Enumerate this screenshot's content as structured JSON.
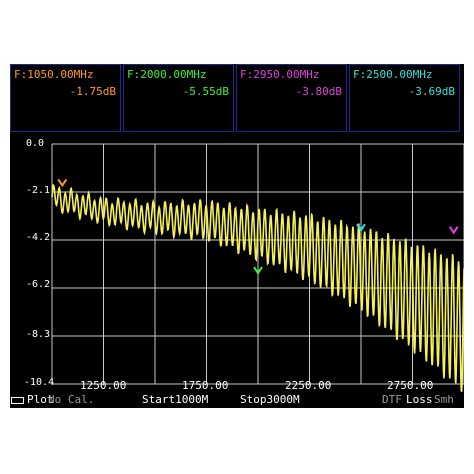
{
  "markers": [
    {
      "freq": "F:1050.00MHz",
      "value": "-1.75dB",
      "color": "#ff9a2e"
    },
    {
      "freq": "F:2000.00MHz",
      "value": "-5.55dB",
      "color": "#3cf03c"
    },
    {
      "freq": "F:2950.00MHz",
      "value": "-3.80dB",
      "color": "#e040e0"
    },
    {
      "freq": "F:2500.00MHz",
      "value": "-3.69dB",
      "color": "#32e0e0"
    }
  ],
  "axis": {
    "y_ticks": [
      "0.0",
      "-2.1",
      "-4.2",
      "-6.2",
      "-8.3",
      "-10.4"
    ],
    "x_ticks": [
      "1250.00",
      "1750.00",
      "2250.00",
      "2750.00"
    ]
  },
  "status": {
    "plot": "Plot",
    "cal": "No Cal.",
    "start": "Start1000M",
    "stop": "Stop3000M",
    "mode": "DTF",
    "measure": "Loss",
    "smith": "Smh"
  },
  "chart_data": {
    "type": "line",
    "xlim": [
      1000,
      3000
    ],
    "ylim": [
      -10.4,
      0.0
    ],
    "ylabel": "",
    "xlabel": "",
    "grid": true,
    "series": [
      {
        "x": [
          1000,
          1250,
          1500,
          1750,
          2000,
          2250,
          2500,
          2750,
          3000
        ],
        "y": [
          -2.3,
          -2.9,
          -3.2,
          -3.3,
          -3.9,
          -4.5,
          -5.4,
          -6.6,
          -7.9
        ]
      }
    ],
    "trace_color": "#f5f05a",
    "markers_data": [
      {
        "x": 1050,
        "y": -1.75
      },
      {
        "x": 2000,
        "y": -5.55
      },
      {
        "x": 2950,
        "y": -3.8
      },
      {
        "x": 2500,
        "y": -3.69
      }
    ]
  }
}
